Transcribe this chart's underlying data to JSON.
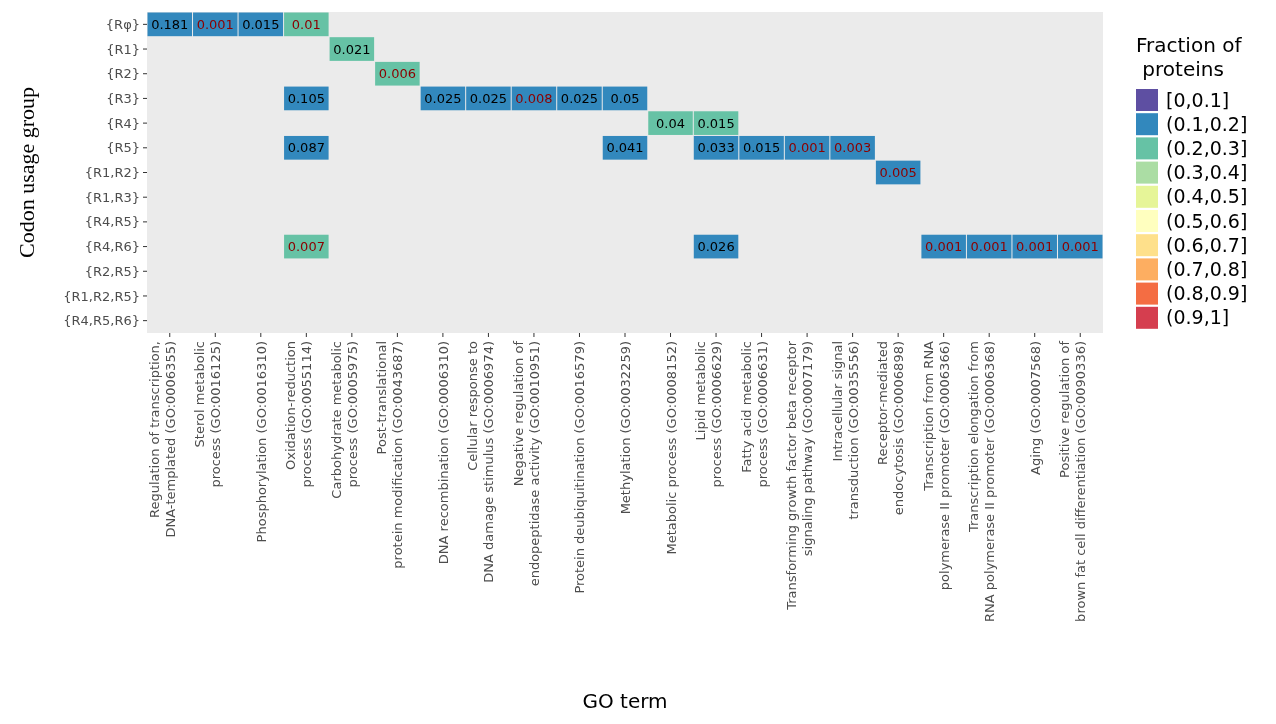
{
  "chart_data": {
    "type": "heatmap",
    "xlabel": "GO term",
    "ylabel": "Codon usage group",
    "categories": [
      "Regulation of transcription,\nDNA-templated (GO:0006355)",
      "Sterol metabolic\nprocess (GO:0016125)",
      "Phosphorylation (GO:0016310)",
      "Oxidation-reduction\nprocess (GO:0055114)",
      "Carbohydrate metabolic\nprocess (GO:0005975)",
      "Post-translational\nprotein modification (GO:0043687)",
      "DNA recombination (GO:0006310)",
      "Cellular response to\nDNA damage stimulus (GO:0006974)",
      "Negative regulation of\nendopeptidase activity (GO:0010951)",
      "Protein deubiquitination (GO:0016579)",
      "Methylation (GO:0032259)",
      "Metabolic process (GO:0008152)",
      "Lipid metabolic\nprocess (GO:0006629)",
      "Fatty acid metabolic\nprocess (GO:0006631)",
      "Transforming growth factor beta receptor\nsignaling pathway (GO:0007179)",
      "Intracellular signal\ntransduction (GO:0035556)",
      "Receptor-mediated\nendocytosis (GO:0006898)",
      "Transcription from RNA\npolymerase II promoter (GO:0006366)",
      "Transcription elongation from\nRNA polymerase II promoter (GO:0006368)",
      "Aging (GO:0007568)",
      "Positive regulation of\nbrown fat cell differentiation (GO:0090336)"
    ],
    "y_categories": [
      "{Rφ}",
      "{R1}",
      "{R2}",
      "{R3}",
      "{R4}",
      "{R5}",
      "{R1,R2}",
      "{R1,R3}",
      "{R4,R5}",
      "{R4,R6}",
      "{R2,R5}",
      "{R1,R2,R5}",
      "{R4,R5,R6}"
    ],
    "cells": [
      [
        0.181,
        0.001,
        0.015,
        0.01,
        null,
        null,
        null,
        null,
        null,
        null,
        null,
        null,
        null,
        null,
        null,
        null,
        null,
        null,
        null,
        null,
        null
      ],
      [
        null,
        null,
        null,
        null,
        0.021,
        null,
        null,
        null,
        null,
        null,
        null,
        null,
        null,
        null,
        null,
        null,
        null,
        null,
        null,
        null,
        null
      ],
      [
        null,
        null,
        null,
        null,
        null,
        0.006,
        null,
        null,
        null,
        null,
        null,
        null,
        null,
        null,
        null,
        null,
        null,
        null,
        null,
        null,
        null
      ],
      [
        null,
        null,
        null,
        0.105,
        null,
        null,
        0.025,
        0.025,
        0.008,
        0.025,
        0.05,
        null,
        null,
        null,
        null,
        null,
        null,
        null,
        null,
        null,
        null
      ],
      [
        null,
        null,
        null,
        null,
        null,
        null,
        null,
        null,
        null,
        null,
        null,
        0.04,
        0.015,
        null,
        null,
        null,
        null,
        null,
        null,
        null,
        null
      ],
      [
        null,
        null,
        null,
        0.087,
        null,
        null,
        null,
        null,
        null,
        null,
        0.041,
        null,
        0.033,
        0.015,
        0.001,
        0.003,
        null,
        null,
        null,
        null,
        null
      ],
      [
        null,
        null,
        null,
        null,
        null,
        null,
        null,
        null,
        null,
        null,
        null,
        null,
        null,
        null,
        null,
        null,
        0.005,
        null,
        null,
        null,
        null
      ],
      [
        null,
        null,
        null,
        null,
        null,
        null,
        null,
        null,
        null,
        null,
        null,
        null,
        null,
        null,
        null,
        null,
        null,
        null,
        null,
        null,
        null
      ],
      [
        null,
        null,
        null,
        null,
        null,
        null,
        null,
        null,
        null,
        null,
        null,
        null,
        null,
        null,
        null,
        null,
        null,
        null,
        null,
        null,
        null
      ],
      [
        null,
        null,
        null,
        0.007,
        null,
        null,
        null,
        null,
        null,
        null,
        null,
        null,
        0.026,
        null,
        null,
        null,
        null,
        0.001,
        0.001,
        0.001,
        0.001
      ],
      [
        null,
        null,
        null,
        null,
        null,
        null,
        null,
        null,
        null,
        null,
        null,
        null,
        null,
        null,
        null,
        null,
        null,
        null,
        null,
        null,
        null
      ],
      [
        null,
        null,
        null,
        null,
        null,
        null,
        null,
        null,
        null,
        null,
        null,
        null,
        null,
        null,
        null,
        null,
        null,
        null,
        null,
        null,
        null
      ],
      [
        null,
        null,
        null,
        null,
        null,
        null,
        null,
        null,
        null,
        null,
        null,
        null,
        null,
        null,
        null,
        null,
        null,
        null,
        null,
        null,
        null
      ]
    ],
    "data_labels": true,
    "legend": "right",
    "legend_title": "Fraction of\n proteins",
    "colors": [
      [
        "#3288bd",
        "#3288bd",
        "#3288bd",
        "#66c2a5",
        null,
        null,
        null,
        null,
        null,
        null,
        null,
        null,
        null,
        null,
        null,
        null,
        null,
        null,
        null,
        null,
        null
      ],
      [
        null,
        null,
        null,
        null,
        "#66c2a5",
        null,
        null,
        null,
        null,
        null,
        null,
        null,
        null,
        null,
        null,
        null,
        null,
        null,
        null,
        null,
        null
      ],
      [
        null,
        null,
        null,
        null,
        null,
        "#66c2a5",
        null,
        null,
        null,
        null,
        null,
        null,
        null,
        null,
        null,
        null,
        null,
        null,
        null,
        null,
        null
      ],
      [
        null,
        null,
        null,
        "#3288bd",
        null,
        null,
        "#3288bd",
        "#3288bd",
        "#3288bd",
        "#3288bd",
        "#3288bd",
        null,
        null,
        null,
        null,
        null,
        null,
        null,
        null,
        null,
        null
      ],
      [
        null,
        null,
        null,
        null,
        null,
        null,
        null,
        null,
        null,
        null,
        null,
        "#66c2a5",
        "#66c2a5",
        null,
        null,
        null,
        null,
        null,
        null,
        null,
        null
      ],
      [
        null,
        null,
        null,
        "#3288bd",
        null,
        null,
        null,
        null,
        null,
        null,
        "#3288bd",
        null,
        "#3288bd",
        "#3288bd",
        "#3288bd",
        "#3288bd",
        null,
        null,
        null,
        null,
        null
      ],
      [
        null,
        null,
        null,
        null,
        null,
        null,
        null,
        null,
        null,
        null,
        null,
        null,
        null,
        null,
        null,
        null,
        "#3288bd",
        null,
        null,
        null,
        null
      ],
      [
        null,
        null,
        null,
        null,
        null,
        null,
        null,
        null,
        null,
        null,
        null,
        null,
        null,
        null,
        null,
        null,
        null,
        null,
        null,
        null,
        null
      ],
      [
        null,
        null,
        null,
        null,
        null,
        null,
        null,
        null,
        null,
        null,
        null,
        null,
        null,
        null,
        null,
        null,
        null,
        null,
        null,
        null,
        null
      ],
      [
        null,
        null,
        null,
        "#66c2a5",
        null,
        null,
        null,
        null,
        null,
        null,
        null,
        null,
        "#3288bd",
        null,
        null,
        null,
        null,
        "#3288bd",
        "#3288bd",
        "#3288bd",
        "#3288bd"
      ],
      [
        null,
        null,
        null,
        null,
        null,
        null,
        null,
        null,
        null,
        null,
        null,
        null,
        null,
        null,
        null,
        null,
        null,
        null,
        null,
        null,
        null
      ],
      [
        null,
        null,
        null,
        null,
        null,
        null,
        null,
        null,
        null,
        null,
        null,
        null,
        null,
        null,
        null,
        null,
        null,
        null,
        null,
        null,
        null
      ],
      [
        null,
        null,
        null,
        null,
        null,
        null,
        null,
        null,
        null,
        null,
        null,
        null,
        null,
        null,
        null,
        null,
        null,
        null,
        null,
        null,
        null
      ]
    ],
    "series": [
      {
        "name": "[0,0.1]",
        "color": "#5e4fa2",
        "values": [
          null,
          null,
          null,
          null,
          null,
          null,
          null,
          null,
          null,
          null,
          null,
          null,
          null,
          null,
          null,
          null,
          null,
          null,
          null,
          null,
          null
        ]
      },
      {
        "name": "(0.1,0.2]",
        "color": "#3288bd",
        "values": [
          null,
          null,
          null,
          null,
          null,
          null,
          null,
          null,
          null,
          null,
          null,
          null,
          null,
          null,
          null,
          null,
          null,
          null,
          null,
          null,
          null
        ]
      },
      {
        "name": "(0.2,0.3]",
        "color": "#66c2a5",
        "values": [
          null,
          null,
          null,
          null,
          null,
          null,
          null,
          null,
          null,
          null,
          null,
          null,
          null,
          null,
          null,
          null,
          null,
          null,
          null,
          null,
          null
        ]
      },
      {
        "name": "(0.3,0.4]",
        "color": "#abdda4",
        "values": [
          null,
          null,
          null,
          null,
          null,
          null,
          null,
          null,
          null,
          null,
          null,
          null,
          null,
          null,
          null,
          null,
          null,
          null,
          null,
          null,
          null
        ]
      },
      {
        "name": "(0.4,0.5]",
        "color": "#e6f598",
        "values": [
          null,
          null,
          null,
          null,
          null,
          null,
          null,
          null,
          null,
          null,
          null,
          null,
          null,
          null,
          null,
          null,
          null,
          null,
          null,
          null,
          null
        ]
      },
      {
        "name": "(0.5,0.6]",
        "color": "#ffffbf",
        "values": [
          null,
          null,
          null,
          null,
          null,
          null,
          null,
          null,
          null,
          null,
          null,
          null,
          null,
          null,
          null,
          null,
          null,
          null,
          null,
          null,
          null
        ]
      },
      {
        "name": "(0.6,0.7]",
        "color": "#fee08b",
        "values": [
          null,
          null,
          null,
          null,
          null,
          null,
          null,
          null,
          null,
          null,
          null,
          null,
          null,
          null,
          null,
          null,
          null,
          null,
          null,
          null,
          null
        ]
      },
      {
        "name": "(0.7,0.8]",
        "color": "#fdae61",
        "values": [
          null,
          null,
          null,
          null,
          null,
          null,
          null,
          null,
          null,
          null,
          null,
          null,
          null,
          null,
          null,
          null,
          null,
          null,
          null,
          null,
          null
        ]
      },
      {
        "name": "(0.8,0.9]",
        "color": "#f46d43",
        "values": [
          null,
          null,
          null,
          null,
          null,
          null,
          null,
          null,
          null,
          null,
          null,
          null,
          null,
          null,
          null,
          null,
          null,
          null,
          null,
          null,
          null
        ]
      },
      {
        "name": "(0.9,1]",
        "color": "#d53e4f",
        "values": [
          null,
          null,
          null,
          null,
          null,
          null,
          null,
          null,
          null,
          null,
          null,
          null,
          null,
          null,
          null,
          null,
          null,
          null,
          null,
          null,
          null
        ]
      }
    ]
  }
}
